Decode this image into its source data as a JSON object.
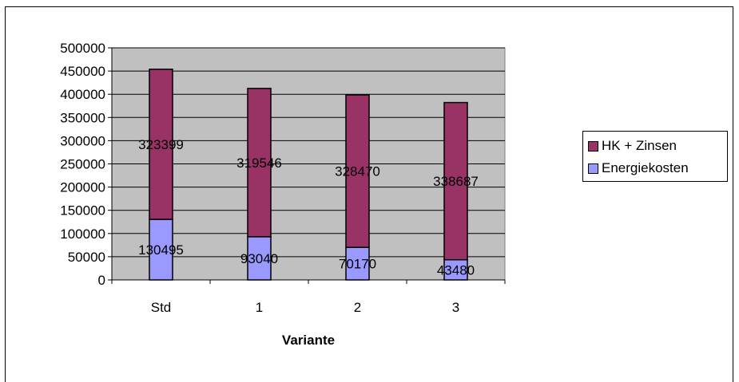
{
  "chart_data": {
    "type": "bar",
    "stacked": true,
    "categories": [
      "Std",
      "1",
      "2",
      "3"
    ],
    "series": [
      {
        "name": "Energiekosten",
        "values": [
          130495,
          93040,
          70170,
          43480
        ],
        "color": "#9999ff"
      },
      {
        "name": "HK + Zinsen",
        "values": [
          323399,
          319546,
          328470,
          338687
        ],
        "color": "#993366"
      }
    ],
    "xlabel": "Variante",
    "ylabel": "",
    "ylim": [
      0,
      500000
    ],
    "yticks": [
      "0",
      "50000",
      "100000",
      "150000",
      "200000",
      "250000",
      "300000",
      "350000",
      "400000",
      "450000",
      "500000"
    ],
    "grid": true,
    "plot_background": "#c0c0c0",
    "legend_position": "right",
    "legend": [
      "HK + Zinsen",
      "Energiekosten"
    ]
  }
}
